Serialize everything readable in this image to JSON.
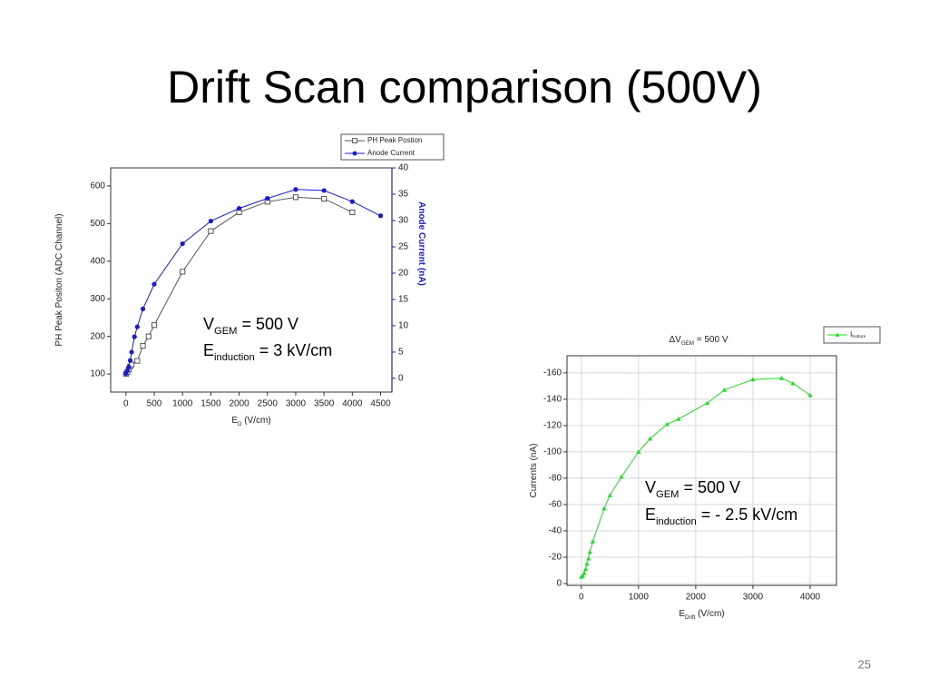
{
  "slide": {
    "title": "Drift Scan comparison (500V)",
    "page_number": 25
  },
  "chart_data": [
    {
      "type": "line",
      "x_label": [
        {
          "text": "E"
        },
        {
          "text": "D",
          "sub": true
        },
        {
          "text": " (V/cm)"
        }
      ],
      "y_label": "PH Peak Positon (ADC Channel)",
      "y2_label": "Anode Current (nA)",
      "y2_color": "#2020cc",
      "xlim": [
        -270,
        4700
      ],
      "xticks": [
        0,
        500,
        1000,
        1500,
        2000,
        2500,
        3000,
        3500,
        4000,
        4500
      ],
      "ylim": [
        52,
        648
      ],
      "yticks": [
        100,
        200,
        300,
        400,
        500,
        600
      ],
      "y2lim": [
        -2.6,
        40
      ],
      "y2ticks": [
        0,
        5,
        10,
        15,
        20,
        25,
        30,
        35,
        40
      ],
      "grid": false,
      "legend": "top-right",
      "annotations": [
        [
          {
            "text": "V"
          },
          {
            "text": "GEM",
            "sub": true
          },
          {
            "text": " = 500 V"
          }
        ],
        [
          {
            "text": "E"
          },
          {
            "text": "induction",
            "sub": true
          },
          {
            "text": " = 3 kV/cm"
          }
        ]
      ],
      "series": [
        {
          "name": "PH Peak Postion",
          "color": "#555555",
          "marker": "square-open",
          "x": [
            0,
            25,
            50,
            75,
            100,
            200,
            300,
            400,
            500,
            1000,
            1500,
            2000,
            2500,
            3000,
            3500,
            4000
          ],
          "values": [
            100,
            105,
            112,
            120,
            125,
            135,
            175,
            200,
            230,
            372,
            480,
            530,
            558,
            570,
            566,
            530
          ]
        },
        {
          "name": "Anode Current",
          "color": "#1a1ad8",
          "marker": "circle",
          "axis": "y2",
          "x": [
            0,
            25,
            50,
            75,
            100,
            150,
            200,
            300,
            500,
            1000,
            1500,
            2000,
            2500,
            3000,
            3500,
            4000,
            4500
          ],
          "values": [
            0.9,
            1.5,
            2.2,
            3.4,
            5,
            7.9,
            9.8,
            13.2,
            17.9,
            25.6,
            29.9,
            32.3,
            34.2,
            35.9,
            35.7,
            33.6,
            30.9
          ]
        }
      ]
    },
    {
      "type": "line",
      "title": [
        {
          "text": "ΔV"
        },
        {
          "text": "GEM",
          "sub": true
        },
        {
          "text": " = 500 V"
        }
      ],
      "x_label": [
        {
          "text": "E"
        },
        {
          "text": "Drift",
          "sub": true
        },
        {
          "text": " (V/cm)"
        }
      ],
      "y_label": "Currents (nA)",
      "xlim": [
        -250,
        4460
      ],
      "xticks": [
        0,
        1000,
        2000,
        3000,
        4000
      ],
      "ylim": [
        1.4,
        -173
      ],
      "yticks": [
        0,
        -20,
        -40,
        -60,
        -80,
        -100,
        -120,
        -140,
        -160
      ],
      "grid": true,
      "legend": "top-right",
      "annotations": [
        [
          {
            "text": "V"
          },
          {
            "text": "GEM",
            "sub": true
          },
          {
            "text": " = 500 V"
          }
        ],
        [
          {
            "text": "E"
          },
          {
            "text": "induction",
            "sub": true
          },
          {
            "text": " = - 2.5 kV/cm"
          }
        ]
      ],
      "series": [
        {
          "name": [
            {
              "text": "I"
            },
            {
              "text": "bottom",
              "sub": true
            }
          ],
          "color": "#22dd22",
          "marker": "triangle",
          "x": [
            0,
            25,
            50,
            75,
            100,
            125,
            150,
            200,
            400,
            500,
            700,
            1000,
            1200,
            1500,
            1700,
            2200,
            2500,
            3000,
            3500,
            3700,
            4000
          ],
          "values": [
            -5,
            -6,
            -8,
            -11,
            -15,
            -19,
            -24,
            -32,
            -57,
            -67,
            -81,
            -100,
            -110,
            -121,
            -125,
            -137,
            -147,
            -155,
            -156,
            -152,
            -143
          ]
        }
      ]
    }
  ]
}
